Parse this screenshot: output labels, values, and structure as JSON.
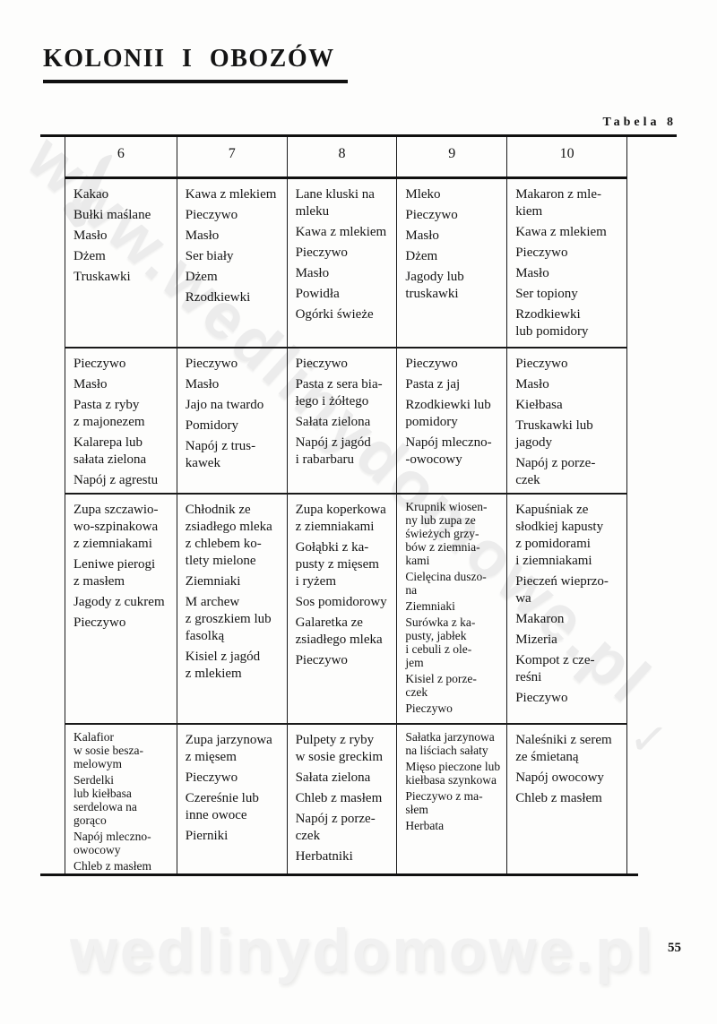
{
  "page": {
    "title": "KOLONII I OBOZÓW",
    "table_label": "Tabela 8",
    "page_number": "55"
  },
  "watermarks": {
    "diagonal_text": "www.wedlinydomowe.pl",
    "bottom_text": "wedlinydomowe.pl"
  },
  "table": {
    "headers": [
      "6",
      "7",
      "8",
      "9",
      "10"
    ],
    "rows": [
      [
        [
          "Kakao",
          "Bułki maślane",
          "Masło",
          "Dżem",
          "Truskawki"
        ],
        [
          "Kawa z mlekiem",
          "Pieczywo",
          "Masło",
          "Ser biały",
          "Dżem",
          "Rzodkiewki"
        ],
        [
          "Lane kluski na\nmleku",
          "Kawa z mlekiem",
          "Pieczywo",
          "Masło",
          "Powidła",
          "Ogórki świeże"
        ],
        [
          "Mleko",
          "Pieczywo",
          "Masło",
          "Dżem",
          "Jagody lub\ntruskawki"
        ],
        [
          "Makaron z mle-\nkiem",
          "Kawa z mlekiem",
          "Pieczywo",
          "Masło",
          "Ser topiony",
          "Rzodkiewki\nlub pomidory"
        ]
      ],
      [
        [
          "Pieczywo",
          "Masło",
          "Pasta z ryby\nz majonezem",
          "Kalarepa lub\nsałata zielona",
          "Napój z agrestu"
        ],
        [
          "Pieczywo",
          "Masło",
          "Jajo na twardo",
          "Pomidory",
          "Napój z trus-\nkawek"
        ],
        [
          "Pieczywo",
          "Pasta z sera bia-\nłego i żółtego",
          "Sałata zielona",
          "Napój z jagód\ni rabarbaru"
        ],
        [
          "Pieczywo",
          "Pasta z jaj",
          "Rzodkiewki lub\npomidory",
          "Napój mleczno-\n-owocowy"
        ],
        [
          "Pieczywo",
          "Masło",
          "Kiełbasa",
          "Truskawki lub\njagody",
          "Napój z porze-\nczek"
        ]
      ],
      [
        [
          "Zupa szczawio-\nwo-szpinakowa\nz ziemniakami",
          "Leniwe pierogi\nz masłem",
          "Jagody z cukrem",
          "Pieczywo"
        ],
        [
          "Chłodnik ze\nzsiadłego mleka\nz chlebem ko-\ntlety mielone",
          "Ziemniaki",
          "M archew\nz groszkiem lub\nfasolką",
          "Kisiel z jagód\nz mlekiem"
        ],
        [
          "Zupa koperkowa\nz ziemniakami",
          "Gołąbki z ka-\npusty z mięsem\ni ryżem",
          "Sos pomidorowy",
          "Galaretka ze\nzsiadłego mleka",
          "Pieczywo"
        ],
        [
          "Krupnik wiosen-\nny lub zupa ze\nświeżych grzy-\nbów z ziemnia-\nkami",
          "Cielęcina duszo-\nna",
          "Ziemniaki",
          "Surówka z ka-\npusty, jabłek\ni cebuli z ole-\njem",
          "Kisiel z porze-\nczek",
          "Pieczywo"
        ],
        [
          "Kapuśniak ze\nsłodkiej kapusty\nz pomidorami\ni ziemniakami",
          "Pieczeń wieprzo-\nwa",
          "Makaron",
          "Mizeria",
          "Kompot z cze-\nreśni",
          "Pieczywo"
        ]
      ],
      [
        [
          "Kalafior\nw sosie besza-\nmelowym",
          "Serdelki\nlub kiełbasa\nserdelowa na\ngorąco",
          "Napój mleczno-\nowocowy",
          "Chleb z masłem"
        ],
        [
          "Zupa jarzynowa\nz mięsem",
          "Pieczywo",
          "Czereśnie lub\ninne owoce",
          "Pierniki"
        ],
        [
          "Pulpety z ryby\nw sosie greckim",
          "Sałata zielona",
          "Chleb z masłem",
          "Napój z porze-\nczek",
          "Herbatniki"
        ],
        [
          "Sałatka jarzynowa\nna liściach sałaty",
          "Mięso pieczone lub\nkiełbasa szynkowa",
          "Pieczywo z ma-\nsłem",
          "Herbata"
        ],
        [
          "Naleśniki z serem\nze śmietaną",
          "Napój owocowy",
          "Chleb z masłem"
        ]
      ]
    ]
  }
}
